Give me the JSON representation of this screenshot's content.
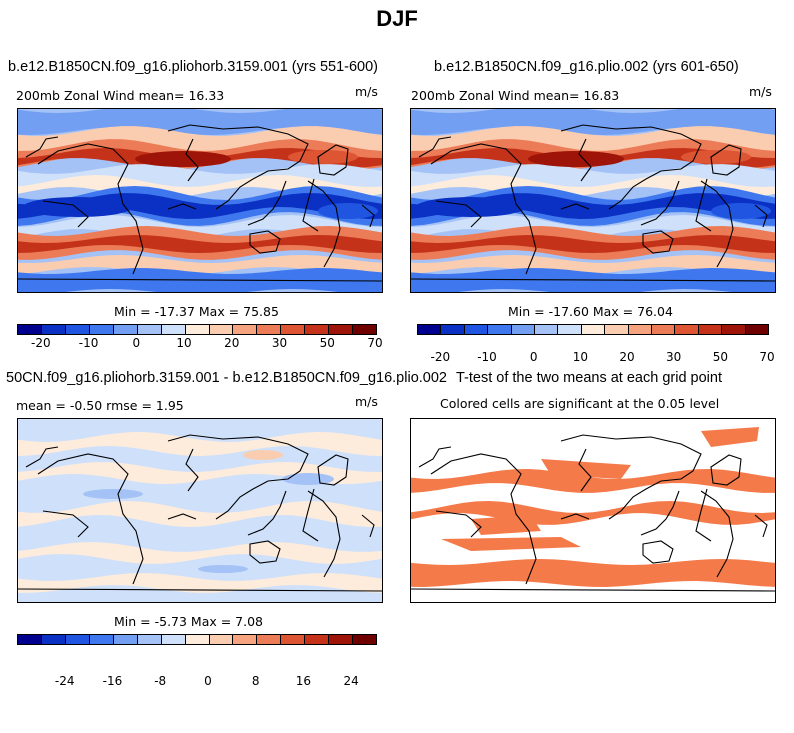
{
  "figure": {
    "title": "DJF"
  },
  "panels": [
    {
      "title": "b.e12.B1850CN.f09_g16.pliohorb.3159.001 (yrs 551-600)",
      "left_text": "200mb Zonal Wind  mean=  16.33",
      "units": "m/s",
      "min_max": "Min = -17.37 Max =  75.85"
    },
    {
      "title": "b.e12.B1850CN.f09_g16.plio.002 (yrs 601-650)",
      "left_text": "200mb Zonal Wind  mean=  16.83",
      "units": "m/s",
      "min_max": "Min = -17.60 Max =  76.04"
    },
    {
      "title": "50CN.f09_g16.pliohorb.3159.001 - b.e12.B1850CN.f09_g16.plio.002",
      "left_text": "mean =  -0.50     rmse =   1.95",
      "units": "m/s",
      "min_max": "Min =  -5.73 Max =   7.08"
    },
    {
      "title": "T-test of the two means at each grid point",
      "left_text": "Colored cells are significant at the 0.05 level"
    }
  ],
  "colorbars": {
    "wind": {
      "colors": [
        "#00008f",
        "#0b30c4",
        "#1f55e0",
        "#3f78ee",
        "#739ff3",
        "#a4c2f6",
        "#cfe0fa",
        "#fdecdc",
        "#fbcdb0",
        "#f5a47f",
        "#ec7c57",
        "#dd5533",
        "#c43319",
        "#9e1409",
        "#6e0000"
      ],
      "ticks": [
        "-20",
        "-10",
        "0",
        "10",
        "20",
        "30",
        "50",
        "70"
      ]
    },
    "diff": {
      "colors": [
        "#00008f",
        "#0b30c4",
        "#1f55e0",
        "#3f78ee",
        "#739ff3",
        "#a4c2f6",
        "#cfe0fa",
        "#fdecdc",
        "#fbcdb0",
        "#f5a47f",
        "#ec7c57",
        "#dd5533",
        "#c43319",
        "#9e1409",
        "#6e0000"
      ],
      "ticks": [
        "-24",
        "-16",
        "-8",
        "0",
        "8",
        "16",
        "24"
      ]
    }
  },
  "colors": {
    "sig": "#f47a4a",
    "strong_pos": "#d9462a",
    "strong_neg": "#1f4fd8"
  }
}
